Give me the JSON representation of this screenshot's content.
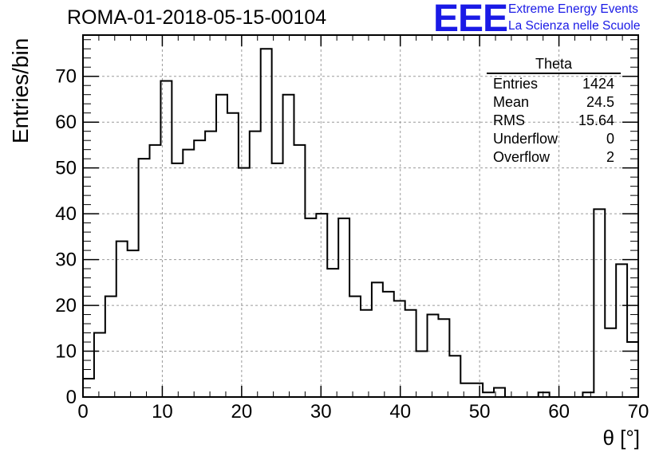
{
  "header": {
    "run_title": "ROMA-01-2018-05-15-00104",
    "logo": {
      "mark": "EEE",
      "line1": "Extreme Energy Events",
      "line2": "La Scienza nelle Scuole",
      "color": "#1a1ae6"
    }
  },
  "stats_box": {
    "title": "Theta",
    "rows": [
      {
        "label": "Entries",
        "value": "1424"
      },
      {
        "label": "Mean",
        "value": "24.5"
      },
      {
        "label": "RMS",
        "value": "15.64"
      },
      {
        "label": "Underflow",
        "value": "0"
      },
      {
        "label": "Overflow",
        "value": "2"
      }
    ]
  },
  "chart_data": {
    "type": "histogram",
    "title": "",
    "xlabel": "θ [°]",
    "ylabel": "Entries/bin",
    "xlim": [
      0,
      70
    ],
    "ylim": [
      0,
      79
    ],
    "bin_width": 1.4,
    "x_ticks": [
      0,
      10,
      20,
      30,
      40,
      50,
      60,
      70
    ],
    "y_ticks": [
      0,
      10,
      20,
      30,
      40,
      50,
      60,
      70
    ],
    "grid": true,
    "line_color": "#000000",
    "values": [
      4,
      14,
      22,
      34,
      32,
      52,
      55,
      69,
      51,
      54,
      56,
      58,
      66,
      62,
      50,
      58,
      76,
      51,
      66,
      55,
      39,
      40,
      28,
      39,
      22,
      19,
      25,
      23,
      21,
      19,
      10,
      18,
      17,
      9,
      3,
      3,
      1,
      2,
      0,
      0,
      0,
      1,
      0,
      0,
      0,
      1,
      41,
      15,
      29,
      12
    ]
  }
}
